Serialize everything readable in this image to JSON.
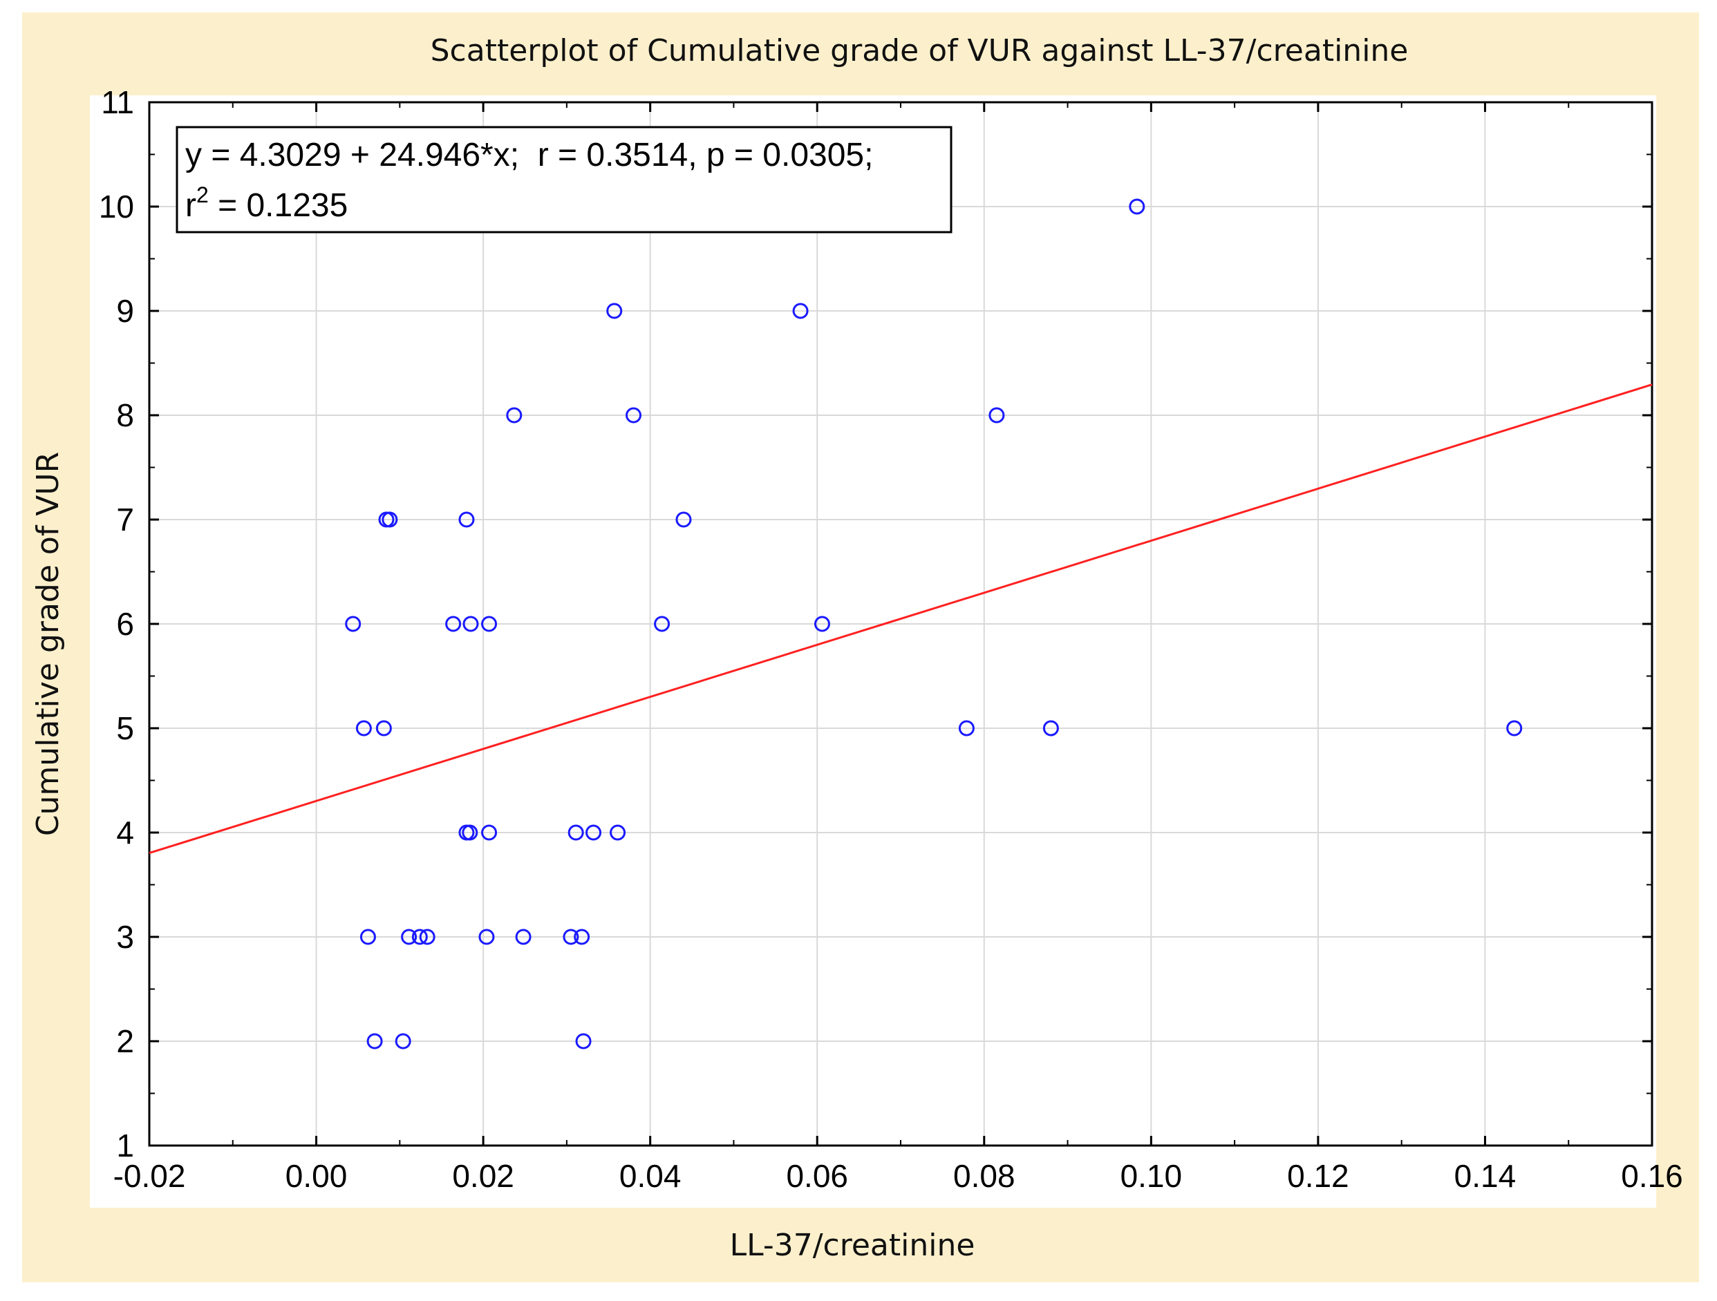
{
  "chart_data": {
    "type": "scatter",
    "title": "Scatterplot of Cumulative grade of VUR against LL-37/creatinine",
    "xlabel": "LL-37/creatinine",
    "ylabel": "Cumulative grade of VUR",
    "xlim": [
      -0.02,
      0.16
    ],
    "ylim": [
      1,
      11
    ],
    "x_ticks": [
      "-0.02",
      "0.00",
      "0.02",
      "0.04",
      "0.06",
      "0.08",
      "0.10",
      "0.12",
      "0.14",
      "0.16"
    ],
    "y_ticks": [
      "1",
      "2",
      "3",
      "4",
      "5",
      "6",
      "7",
      "8",
      "9",
      "10",
      "11"
    ],
    "grid": true,
    "annotation": {
      "line1": "y = 4.3029 + 24.946*x;  r = 0.3514, p = 0.0305;",
      "line2_prefix": "r",
      "line2_sup": "2",
      "line2_suffix": " = 0.1235"
    },
    "regression": {
      "intercept": 4.3029,
      "slope": 24.946,
      "color": "#ff2020"
    },
    "point_color": "#1a1aff",
    "background_color": "#fcf0cc",
    "points": [
      {
        "x": 0.0983,
        "y": 10
      },
      {
        "x": 0.0357,
        "y": 9
      },
      {
        "x": 0.058,
        "y": 9
      },
      {
        "x": 0.0237,
        "y": 8
      },
      {
        "x": 0.038,
        "y": 8
      },
      {
        "x": 0.0815,
        "y": 8
      },
      {
        "x": 0.0084,
        "y": 7
      },
      {
        "x": 0.0088,
        "y": 7
      },
      {
        "x": 0.018,
        "y": 7
      },
      {
        "x": 0.044,
        "y": 7
      },
      {
        "x": 0.0044,
        "y": 6
      },
      {
        "x": 0.0164,
        "y": 6
      },
      {
        "x": 0.0185,
        "y": 6
      },
      {
        "x": 0.0207,
        "y": 6
      },
      {
        "x": 0.0414,
        "y": 6
      },
      {
        "x": 0.0606,
        "y": 6
      },
      {
        "x": 0.0057,
        "y": 5
      },
      {
        "x": 0.0081,
        "y": 5
      },
      {
        "x": 0.0779,
        "y": 5
      },
      {
        "x": 0.088,
        "y": 5
      },
      {
        "x": 0.1435,
        "y": 5
      },
      {
        "x": 0.018,
        "y": 4
      },
      {
        "x": 0.0184,
        "y": 4
      },
      {
        "x": 0.0207,
        "y": 4
      },
      {
        "x": 0.0311,
        "y": 4
      },
      {
        "x": 0.0332,
        "y": 4
      },
      {
        "x": 0.0361,
        "y": 4
      },
      {
        "x": 0.0062,
        "y": 3
      },
      {
        "x": 0.0111,
        "y": 3
      },
      {
        "x": 0.0124,
        "y": 3
      },
      {
        "x": 0.0133,
        "y": 3
      },
      {
        "x": 0.0204,
        "y": 3
      },
      {
        "x": 0.0248,
        "y": 3
      },
      {
        "x": 0.0305,
        "y": 3
      },
      {
        "x": 0.0318,
        "y": 3
      },
      {
        "x": 0.007,
        "y": 2
      },
      {
        "x": 0.0104,
        "y": 2
      },
      {
        "x": 0.032,
        "y": 2
      }
    ]
  }
}
